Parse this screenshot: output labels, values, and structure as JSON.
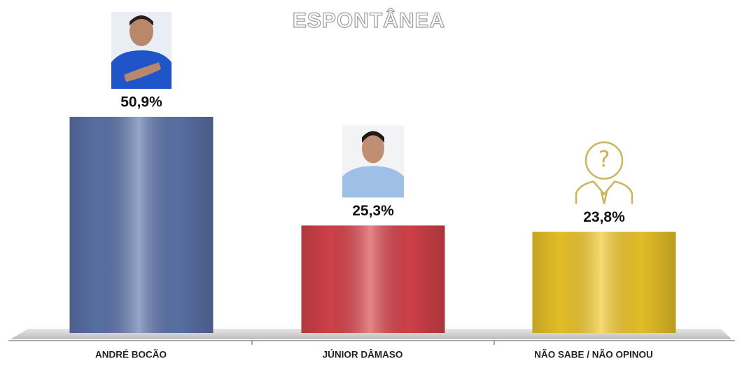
{
  "chart_data": {
    "type": "bar",
    "title": "ESPONTÂNEA",
    "categories": [
      "ANDRÉ BOCÃO",
      "JÚNIOR DÂMASO",
      "NÃO SABE / NÃO OPINOU"
    ],
    "values": [
      50.9,
      25.3,
      23.8
    ],
    "value_labels": [
      "50,9%",
      "25,3%",
      "23,8%"
    ],
    "colors": [
      "#5d74ab",
      "#d8434b",
      "#efc72a"
    ]
  }
}
